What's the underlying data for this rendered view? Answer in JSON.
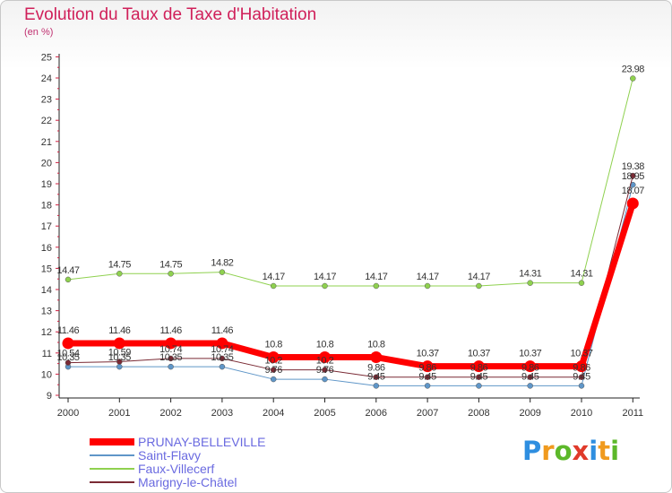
{
  "title": "Evolution du Taux de Taxe d'Habitation",
  "subtitle": "(en %)",
  "logo": {
    "letters": [
      "P",
      "r",
      "o",
      "x",
      "i",
      "t",
      "i"
    ],
    "colors": [
      "#2e8ee0",
      "#f09a1e",
      "#5cb82a",
      "#e03a2a",
      "#2e8ee0",
      "#f09a1e",
      "#5cb82a"
    ]
  },
  "chart_data": {
    "type": "line",
    "title": "Evolution du Taux de Taxe d'Habitation",
    "ylabel": "(en %)",
    "xlabel": "",
    "ylim": [
      9,
      25
    ],
    "yticks": [
      "9",
      "10",
      "11",
      "12",
      "13",
      "14",
      "15",
      "16",
      "17",
      "18",
      "19",
      "20",
      "21",
      "22",
      "23",
      "24",
      "25"
    ],
    "categories": [
      "2000",
      "2001",
      "2002",
      "2003",
      "2004",
      "2005",
      "2006",
      "2007",
      "2008",
      "2009",
      "2010",
      "2011"
    ],
    "series": [
      {
        "name": "Faux-Villecerf",
        "color": "#8fd14f",
        "width": 1,
        "values": [
          14.47,
          14.75,
          14.75,
          14.82,
          14.17,
          14.17,
          14.17,
          14.17,
          14.17,
          14.31,
          14.31,
          23.98
        ],
        "labels": [
          "14.47",
          "14.75",
          "14.75",
          "14.82",
          "14.17",
          "14.17",
          "14.17",
          "14.17",
          "14.17",
          "14.31",
          "14.31",
          "23.98"
        ]
      },
      {
        "name": "Saint-Flavy",
        "color": "#5f96c8",
        "width": 1,
        "values": [
          10.35,
          10.35,
          10.35,
          10.35,
          9.76,
          9.76,
          9.45,
          9.45,
          9.45,
          9.45,
          9.45,
          18.95
        ],
        "labels": [
          "10.35",
          "10.35",
          "10.35",
          "10.35",
          "9.76",
          "9.76",
          "9.45",
          "9.45",
          "9.45",
          "9.45",
          "9.45",
          "18.95"
        ]
      },
      {
        "name": "Marigny-le-Châtel",
        "color": "#7a2a34",
        "width": 1,
        "values": [
          10.54,
          10.59,
          10.74,
          10.74,
          10.2,
          10.2,
          9.86,
          9.86,
          9.86,
          9.86,
          9.86,
          19.38
        ],
        "labels": [
          "10.54",
          "10.59",
          "10.74",
          "10.74",
          "10.2",
          "10.2",
          "9.86",
          "9.86",
          "9.86",
          "9.86",
          "9.86",
          "19.38"
        ]
      },
      {
        "name": "PRUNAY-BELLEVILLE",
        "color": "#ff0000",
        "width": 7,
        "values": [
          11.46,
          11.46,
          11.46,
          11.46,
          10.8,
          10.8,
          10.8,
          10.37,
          10.37,
          10.37,
          10.37,
          18.07
        ],
        "labels": [
          "11.46",
          "11.46",
          "11.46",
          "11.46",
          "10.8",
          "10.8",
          "10.8",
          "10.37",
          "10.37",
          "10.37",
          "10.37",
          "18.07"
        ]
      }
    ],
    "legend": [
      "PRUNAY-BELLEVILLE",
      "Saint-Flavy",
      "Faux-Villecerf",
      "Marigny-le-Châtel"
    ],
    "legend_position": "bottom-left",
    "grid": false
  }
}
